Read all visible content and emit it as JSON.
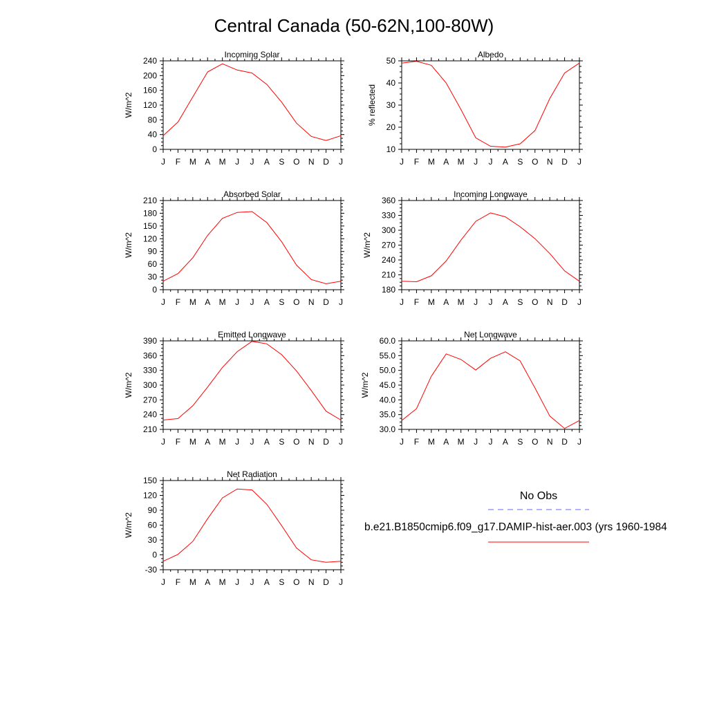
{
  "title": "Central Canada (50-62N,100-80W)",
  "months": [
    "J",
    "F",
    "M",
    "A",
    "M",
    "J",
    "J",
    "A",
    "S",
    "O",
    "N",
    "D",
    "J"
  ],
  "colors": {
    "model": "#ff0000",
    "obs": "#6666ff",
    "axis": "#000000"
  },
  "legend": {
    "obs_label": "No Obs",
    "model_label": "b.e21.B1850cmip6.f09_g17.DAMIP-hist-aer.003 (yrs 1960-1984"
  },
  "chart_data": [
    {
      "type": "line",
      "title": "Incoming Solar",
      "ylabel": "W/m^2",
      "ylim": [
        0,
        240
      ],
      "yticks": [
        0,
        40,
        80,
        120,
        160,
        200,
        240
      ],
      "ytick_labels": [
        "0",
        "40",
        "80",
        "120",
        "160",
        "200",
        "240"
      ],
      "categories": [
        "J",
        "F",
        "M",
        "A",
        "M",
        "J",
        "J",
        "A",
        "S",
        "O",
        "N",
        "D",
        "J"
      ],
      "values": [
        37,
        74,
        142,
        210,
        232,
        215,
        207,
        176,
        128,
        71,
        35,
        24,
        37
      ]
    },
    {
      "type": "line",
      "title": "Albedo",
      "ylabel": "% reflected",
      "ylim": [
        10,
        50
      ],
      "yticks": [
        10,
        20,
        30,
        40,
        50
      ],
      "ytick_labels": [
        "10",
        "20",
        "30",
        "40",
        "50"
      ],
      "categories": [
        "J",
        "F",
        "M",
        "A",
        "M",
        "J",
        "J",
        "A",
        "S",
        "O",
        "N",
        "D",
        "J"
      ],
      "values": [
        49,
        49.8,
        48,
        40,
        28,
        15.2,
        11.4,
        11,
        12.5,
        18.5,
        33,
        44.5,
        49
      ]
    },
    {
      "type": "line",
      "title": "Absorbed Solar",
      "ylabel": "W/m^2",
      "ylim": [
        0,
        210
      ],
      "yticks": [
        0,
        30,
        60,
        90,
        120,
        150,
        180,
        210
      ],
      "ytick_labels": [
        "0",
        "30",
        "60",
        "90",
        "120",
        "150",
        "180",
        "210"
      ],
      "categories": [
        "J",
        "F",
        "M",
        "A",
        "M",
        "J",
        "J",
        "A",
        "S",
        "O",
        "N",
        "D",
        "J"
      ],
      "values": [
        20,
        38,
        75,
        128,
        168,
        182,
        184,
        158,
        113,
        58,
        24,
        14,
        20
      ]
    },
    {
      "type": "line",
      "title": "Incoming Longwave",
      "ylabel": "W/m^2",
      "ylim": [
        180,
        360
      ],
      "yticks": [
        180,
        210,
        240,
        270,
        300,
        330,
        360
      ],
      "ytick_labels": [
        "180",
        "210",
        "240",
        "270",
        "300",
        "330",
        "360"
      ],
      "categories": [
        "J",
        "F",
        "M",
        "A",
        "M",
        "J",
        "J",
        "A",
        "S",
        "O",
        "N",
        "D",
        "J"
      ],
      "values": [
        197,
        196,
        208,
        238,
        280,
        318,
        335,
        327,
        307,
        283,
        253,
        218,
        197
      ]
    },
    {
      "type": "line",
      "title": "Emitted Longwave",
      "ylabel": "W/m^2",
      "ylim": [
        210,
        390
      ],
      "yticks": [
        210,
        240,
        270,
        300,
        330,
        360,
        390
      ],
      "ytick_labels": [
        "210",
        "240",
        "270",
        "300",
        "330",
        "360",
        "390"
      ],
      "categories": [
        "J",
        "F",
        "M",
        "A",
        "M",
        "J",
        "J",
        "A",
        "S",
        "O",
        "N",
        "D",
        "J"
      ],
      "values": [
        229,
        232,
        258,
        296,
        336,
        368,
        389,
        384,
        362,
        329,
        289,
        247,
        229
      ]
    },
    {
      "type": "line",
      "title": "Net Longwave",
      "ylabel": "W/m^2",
      "ylim": [
        30,
        60
      ],
      "yticks": [
        30,
        35,
        40,
        45,
        50,
        55,
        60
      ],
      "ytick_labels": [
        "30.0",
        "35.0",
        "40.0",
        "45.0",
        "50.0",
        "55.0",
        "60.0"
      ],
      "categories": [
        "J",
        "F",
        "M",
        "A",
        "M",
        "J",
        "J",
        "A",
        "S",
        "O",
        "N",
        "D",
        "J"
      ],
      "values": [
        33,
        37,
        48,
        55.6,
        53.7,
        50.1,
        54.1,
        56.3,
        53.2,
        44,
        34.5,
        30.3,
        33
      ]
    },
    {
      "type": "line",
      "title": "Net Radiation",
      "ylabel": "W/m^2",
      "ylim": [
        -30,
        150
      ],
      "yticks": [
        -30,
        0,
        30,
        60,
        90,
        120,
        150
      ],
      "ytick_labels": [
        "-30",
        "0",
        "30",
        "60",
        "90",
        "120",
        "150"
      ],
      "categories": [
        "J",
        "F",
        "M",
        "A",
        "M",
        "J",
        "J",
        "A",
        "S",
        "O",
        "N",
        "D",
        "J"
      ],
      "values": [
        -13,
        1,
        27,
        73,
        115,
        133,
        131,
        102,
        59,
        14,
        -10,
        -15,
        -13
      ]
    }
  ]
}
